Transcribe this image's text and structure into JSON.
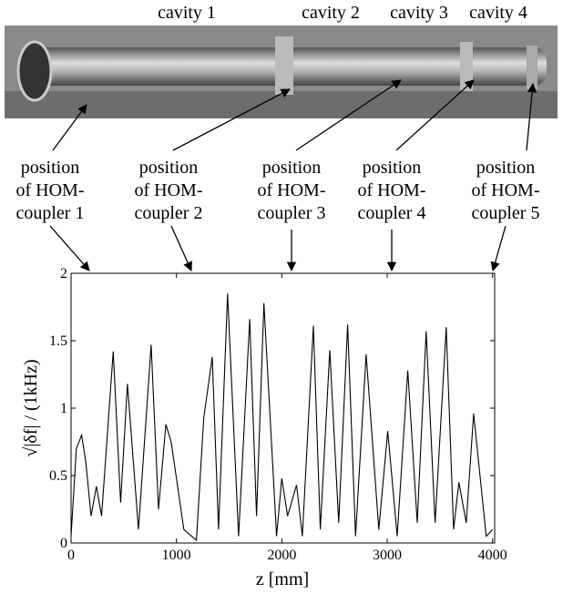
{
  "cavity_labels": [
    "cavity 1",
    "cavity 2",
    "cavity 3",
    "cavity 4"
  ],
  "coupler_labels": [
    [
      "position",
      "of HOM-",
      "coupler 1"
    ],
    [
      "position",
      "of HOM-",
      "coupler 2"
    ],
    [
      "position",
      "of HOM-",
      "coupler 3"
    ],
    [
      "position",
      "of HOM-",
      "coupler 4"
    ],
    [
      "position",
      "of HOM-",
      "coupler 5"
    ]
  ],
  "chart_data": {
    "type": "line",
    "xlabel": "z [mm]",
    "ylabel": "√|δf| / (1kHz)",
    "x": [
      0,
      50,
      100,
      140,
      190,
      240,
      290,
      400,
      470,
      535,
      640,
      760,
      830,
      900,
      950,
      1070,
      1190,
      1260,
      1340,
      1400,
      1485,
      1590,
      1695,
      1760,
      1830,
      1950,
      2000,
      2055,
      2140,
      2195,
      2300,
      2365,
      2455,
      2540,
      2625,
      2700,
      2800,
      2920,
      3005,
      3095,
      3195,
      3285,
      3370,
      3455,
      3560,
      3630,
      3680,
      3750,
      3820,
      3940,
      4000
    ],
    "series": [
      {
        "name": null,
        "color": "#000000",
        "values": [
          0.05,
          0.7,
          0.8,
          0.6,
          0.2,
          0.42,
          0.2,
          1.42,
          0.3,
          1.18,
          0.1,
          1.47,
          0.25,
          0.88,
          0.75,
          0.1,
          0.02,
          0.93,
          1.38,
          0.1,
          1.85,
          0.05,
          1.66,
          0.2,
          1.78,
          0.05,
          0.48,
          0.2,
          0.43,
          0.05,
          1.61,
          0.1,
          1.43,
          0.15,
          1.62,
          0.05,
          1.4,
          0.1,
          0.83,
          0.05,
          1.28,
          0.15,
          1.57,
          0.15,
          1.6,
          0.1,
          0.45,
          0.15,
          0.96,
          0.05,
          0.1
        ]
      }
    ],
    "xlim": [
      0,
      4020
    ],
    "ylim": [
      0,
      2
    ],
    "xticks": [
      0,
      1000,
      2000,
      3000,
      4000
    ],
    "yticks": [
      0,
      0.5,
      1,
      1.5,
      2
    ]
  }
}
